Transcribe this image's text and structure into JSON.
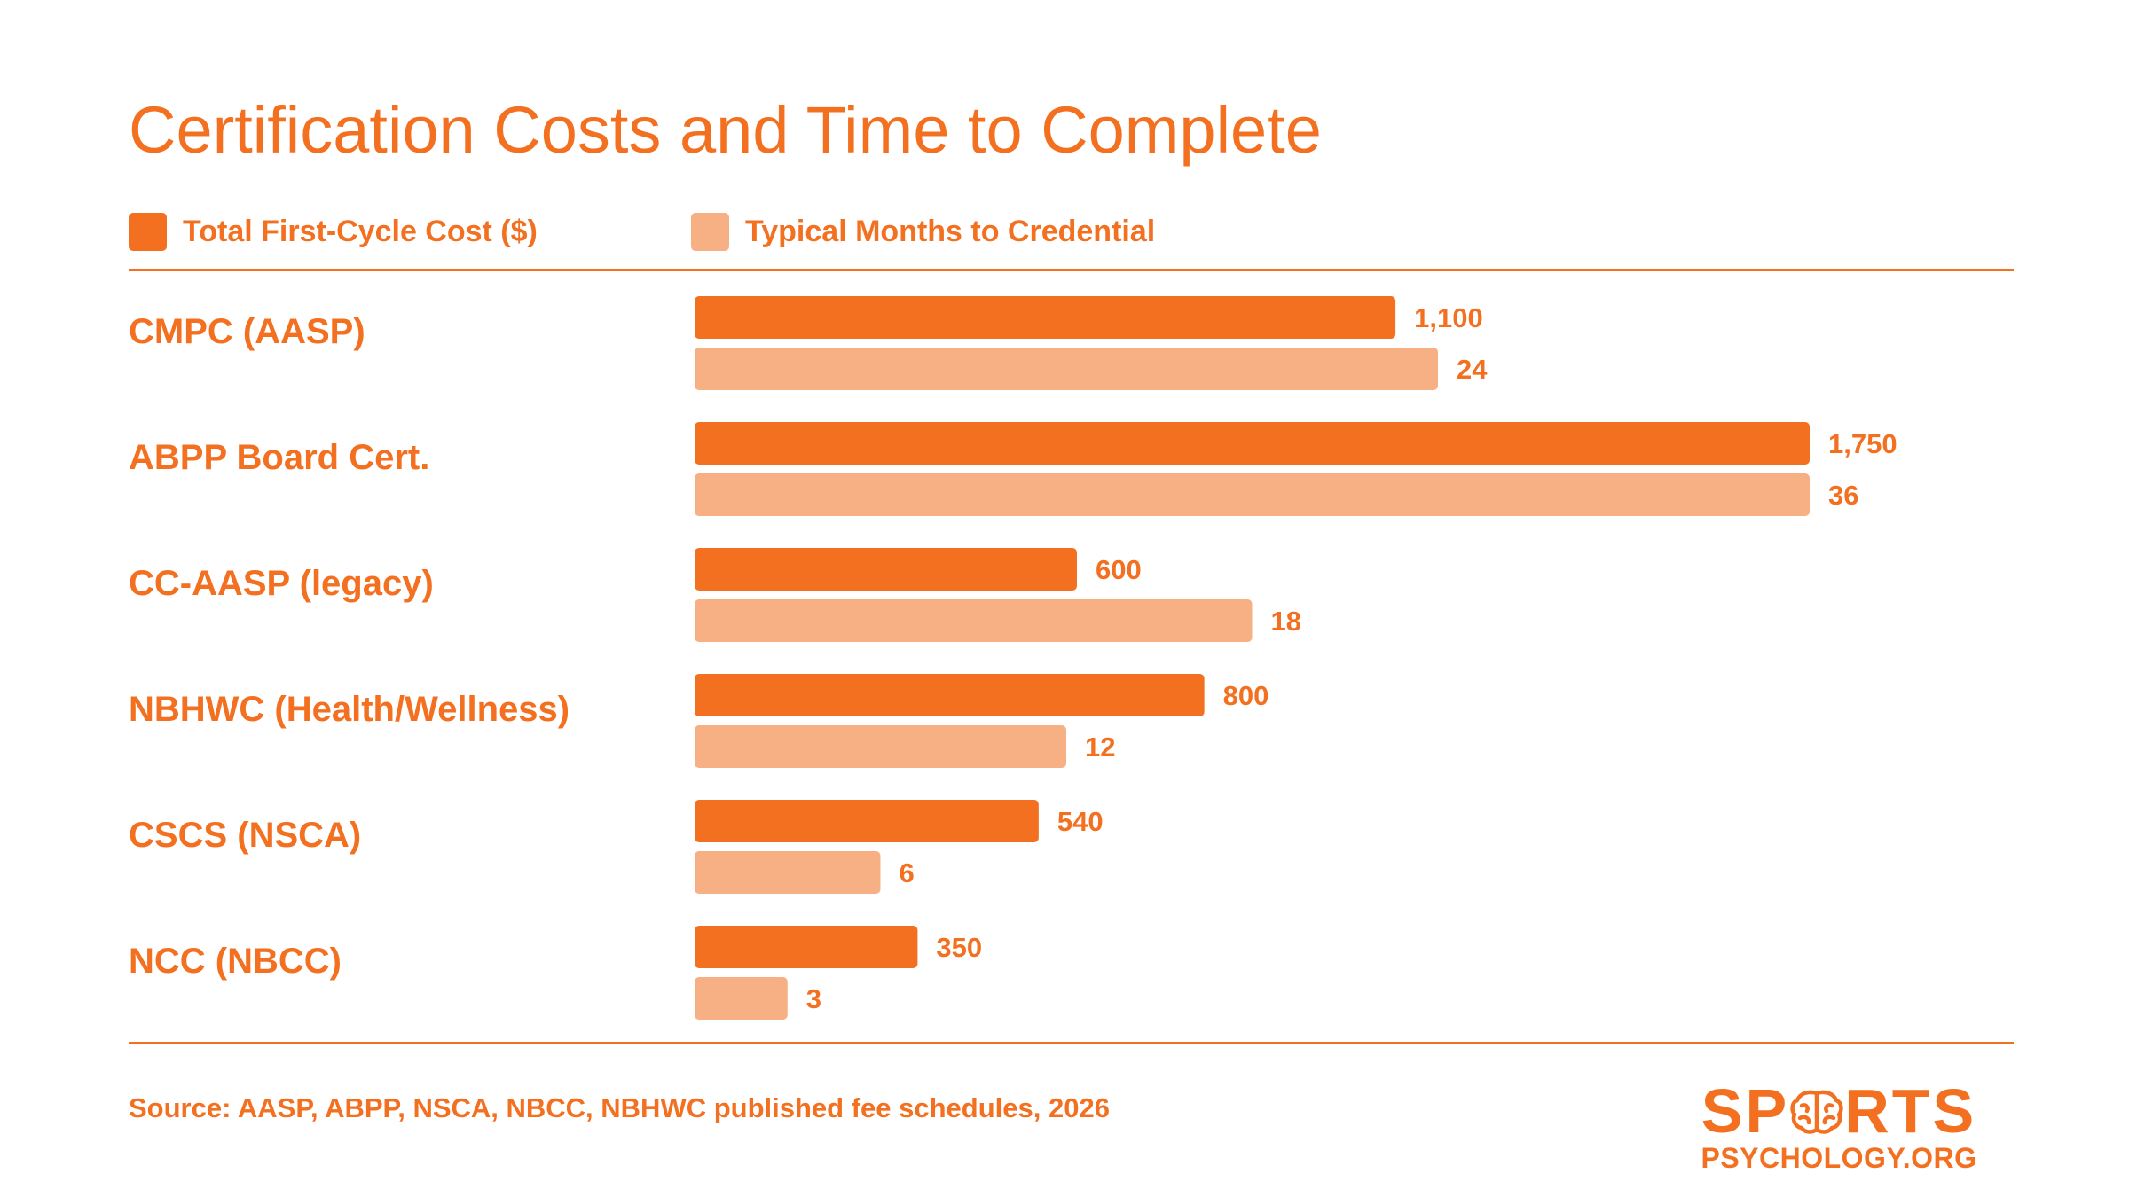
{
  "colors": {
    "primary": "#f37021",
    "secondary": "#f7b083"
  },
  "chart_data": {
    "type": "bar",
    "orientation": "horizontal",
    "title": "Certification Costs and Time to Complete",
    "categories": [
      "CMPC (AASP)",
      "ABPP Board Cert.",
      "CC-AASP (legacy)",
      "NBHWC (Health/Wellness)",
      "CSCS (NSCA)",
      "NCC (NBCC)"
    ],
    "series": [
      {
        "name": "Total First-Cycle Cost ($)",
        "values": [
          1100,
          1750,
          600,
          800,
          540,
          350
        ],
        "labels": [
          "1,100",
          "1,750",
          "600",
          "800",
          "540",
          "350"
        ],
        "xlim": [
          0,
          1750
        ]
      },
      {
        "name": "Typical Months to Credential",
        "values": [
          24,
          36,
          18,
          12,
          6,
          3
        ],
        "labels": [
          "24",
          "36",
          "18",
          "12",
          "6",
          "3"
        ],
        "xlim": [
          0,
          36
        ]
      }
    ],
    "legend": "top-left",
    "grid": false
  },
  "footer": {
    "source": "Source: AASP, ABPP, NSCA, NBCC, NBHWC published fee schedules, 2026"
  },
  "logo": {
    "top_left": "SP",
    "top_right": "RTS",
    "bottom": "PSYCHOLOGY.ORG",
    "icon": "brain-icon"
  }
}
